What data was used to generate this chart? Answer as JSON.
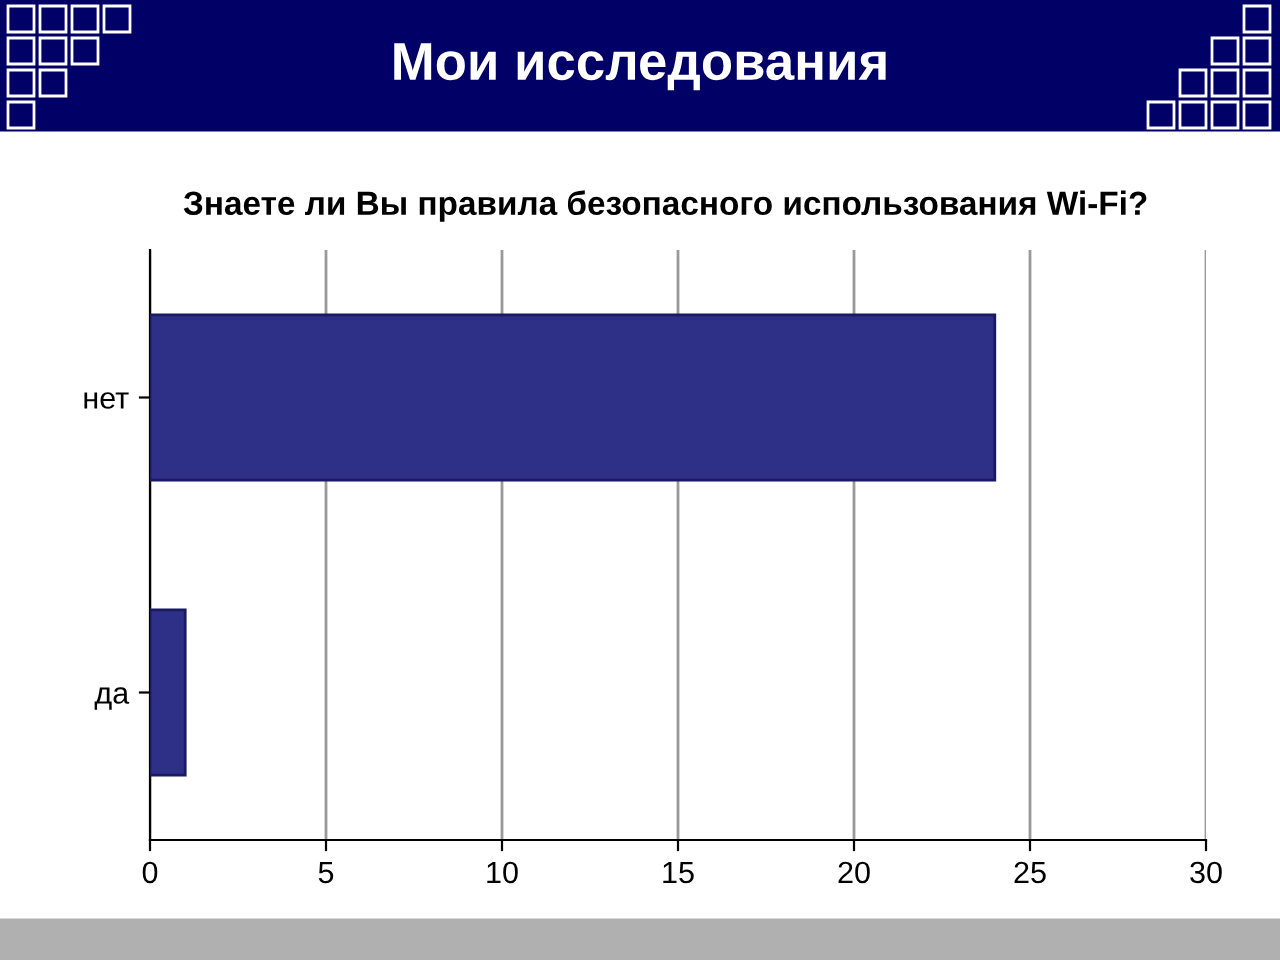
{
  "chart_data": {
    "type": "bar",
    "orientation": "horizontal",
    "title": "Мои исследования",
    "subtitle": "Знаете ли Вы правила безопасного использования Wi-Fi?",
    "categories": [
      "нет",
      "да"
    ],
    "values": [
      24,
      1
    ],
    "color": "#2e3087",
    "xlim": [
      0,
      30
    ],
    "xticks": [
      0,
      5,
      10,
      15,
      20,
      25,
      30
    ],
    "grid": "x",
    "legend": false
  }
}
